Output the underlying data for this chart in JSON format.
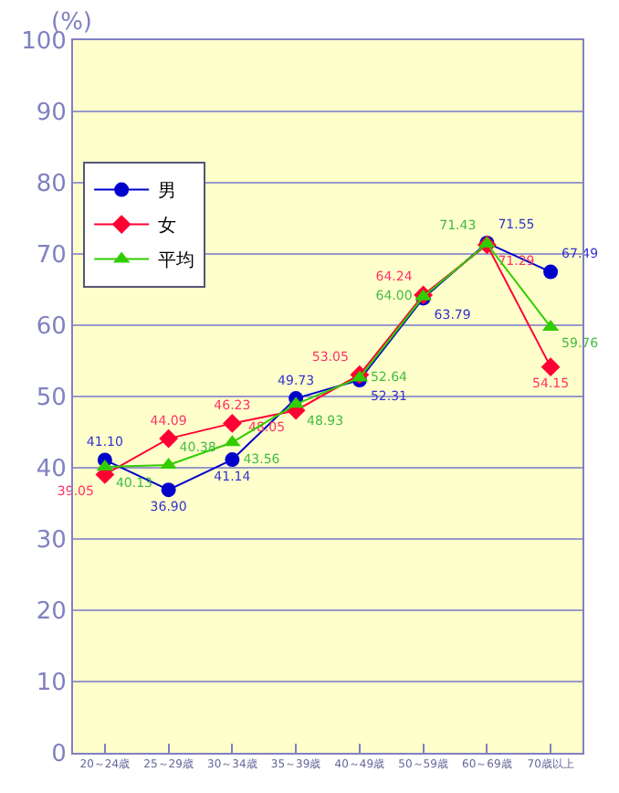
{
  "chart_data": {
    "type": "line",
    "annotations": [
      "(%)"
    ],
    "categories": [
      "20～24歳",
      "25～29歳",
      "30～34歳",
      "35～39歳",
      "40～49歳",
      "50～59歳",
      "60～69歳",
      "70歳以上"
    ],
    "series": [
      {
        "name": "男",
        "color": "#0000cc",
        "marker": "circle",
        "values": [
          41.1,
          36.9,
          41.14,
          49.73,
          52.31,
          63.79,
          71.55,
          67.49
        ],
        "value_labels": [
          "41.10",
          "36.90",
          "41.14",
          "49.73",
          "52.31",
          "63.79",
          "71.55",
          "67.49"
        ]
      },
      {
        "name": "女",
        "color": "#ff0033",
        "marker": "diamond",
        "values": [
          39.05,
          44.09,
          46.23,
          48.05,
          53.05,
          64.24,
          71.29,
          54.15
        ],
        "value_labels": [
          "39.05",
          "44.09",
          "46.23",
          "48.05",
          "53.05",
          "64.24",
          "71.29",
          "54.15"
        ]
      },
      {
        "name": "平均",
        "color": "#33cc00",
        "marker": "triangle",
        "values": [
          40.13,
          40.38,
          43.56,
          48.93,
          52.64,
          64.0,
          71.43,
          59.76
        ],
        "value_labels": [
          "40.13",
          "40.38",
          "43.56",
          "48.93",
          "52.64",
          "64.00",
          "71.43",
          "59.76"
        ]
      }
    ],
    "ylim": [
      0,
      100
    ],
    "yticks": [
      0,
      10,
      20,
      30,
      40,
      50,
      60,
      70,
      80,
      90,
      100
    ],
    "grid": "y",
    "legend": "top left"
  }
}
